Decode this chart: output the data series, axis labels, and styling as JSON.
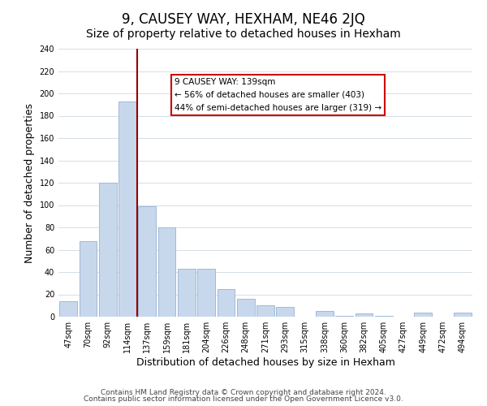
{
  "title": "9, CAUSEY WAY, HEXHAM, NE46 2JQ",
  "subtitle": "Size of property relative to detached houses in Hexham",
  "xlabel": "Distribution of detached houses by size in Hexham",
  "ylabel": "Number of detached properties",
  "bar_color": "#c8d8ec",
  "bar_edge_color": "#a0b8d8",
  "categories": [
    "47sqm",
    "70sqm",
    "92sqm",
    "114sqm",
    "137sqm",
    "159sqm",
    "181sqm",
    "204sqm",
    "226sqm",
    "248sqm",
    "271sqm",
    "293sqm",
    "315sqm",
    "338sqm",
    "360sqm",
    "382sqm",
    "405sqm",
    "427sqm",
    "449sqm",
    "472sqm",
    "494sqm"
  ],
  "values": [
    14,
    68,
    120,
    193,
    99,
    80,
    43,
    43,
    25,
    16,
    10,
    9,
    0,
    5,
    1,
    3,
    1,
    0,
    4,
    0,
    4
  ],
  "vline_x": 3.5,
  "vline_color": "#990000",
  "annotation_line1": "9 CAUSEY WAY: 139sqm",
  "annotation_line2": "← 56% of detached houses are smaller (403)",
  "annotation_line3": "44% of semi-detached houses are larger (319) →",
  "ylim": [
    0,
    240
  ],
  "yticks": [
    0,
    20,
    40,
    60,
    80,
    100,
    120,
    140,
    160,
    180,
    200,
    220,
    240
  ],
  "footer_line1": "Contains HM Land Registry data © Crown copyright and database right 2024.",
  "footer_line2": "Contains public sector information licensed under the Open Government Licence v3.0.",
  "bg_color": "#ffffff",
  "grid_color": "#d4dfe8",
  "title_fontsize": 12,
  "subtitle_fontsize": 10,
  "axis_label_fontsize": 9,
  "tick_fontsize": 7,
  "footer_fontsize": 6.5
}
